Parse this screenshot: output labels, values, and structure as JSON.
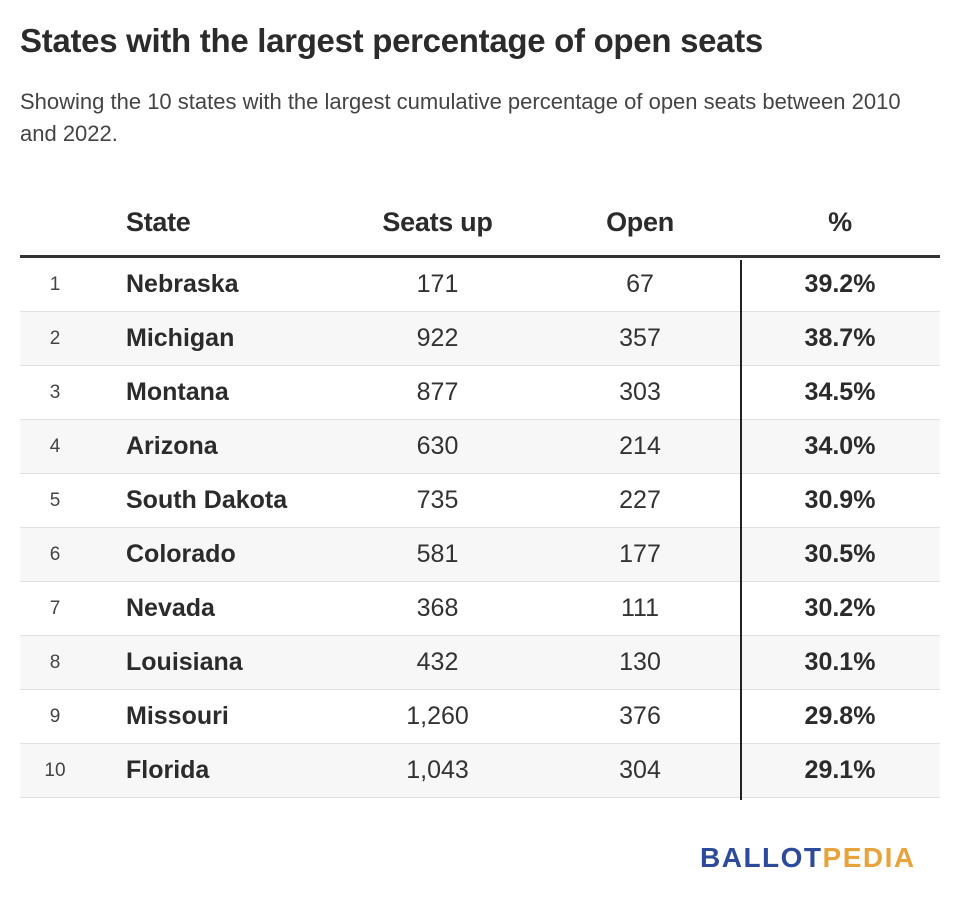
{
  "title": "States with the largest percentage of open seats",
  "subtitle": "Showing the 10 states with the largest cumulative percentage of open seats between 2010 and 2022.",
  "columns": {
    "rank": "",
    "state": "State",
    "seats_up": "Seats up",
    "open": "Open",
    "pct": "%"
  },
  "chart_data": {
    "type": "table",
    "title": "States with the largest percentage of open seats",
    "subtitle": "Showing the 10 states with the largest cumulative percentage of open seats between 2010 and 2022.",
    "columns": [
      "",
      "State",
      "Seats up",
      "Open",
      "%"
    ],
    "rows": [
      {
        "rank": "1",
        "state": "Nebraska",
        "seats_up": "171",
        "open": "67",
        "pct": "39.2%"
      },
      {
        "rank": "2",
        "state": "Michigan",
        "seats_up": "922",
        "open": "357",
        "pct": "38.7%"
      },
      {
        "rank": "3",
        "state": "Montana",
        "seats_up": "877",
        "open": "303",
        "pct": "34.5%"
      },
      {
        "rank": "4",
        "state": "Arizona",
        "seats_up": "630",
        "open": "214",
        "pct": "34.0%"
      },
      {
        "rank": "5",
        "state": "South Dakota",
        "seats_up": "735",
        "open": "227",
        "pct": "30.9%"
      },
      {
        "rank": "6",
        "state": "Colorado",
        "seats_up": "581",
        "open": "177",
        "pct": "30.5%"
      },
      {
        "rank": "7",
        "state": "Nevada",
        "seats_up": "368",
        "open": "111",
        "pct": "30.2%"
      },
      {
        "rank": "8",
        "state": "Louisiana",
        "seats_up": "432",
        "open": "130",
        "pct": "30.1%"
      },
      {
        "rank": "9",
        "state": "Missouri",
        "seats_up": "1,260",
        "open": "376",
        "pct": "29.8%"
      },
      {
        "rank": "10",
        "state": "Florida",
        "seats_up": "1,043",
        "open": "304",
        "pct": "29.1%"
      }
    ]
  },
  "logo": {
    "part1": "BALLOT",
    "part2": "PEDIA",
    "color1": "#2d4a9b",
    "color2": "#e8a33d"
  }
}
